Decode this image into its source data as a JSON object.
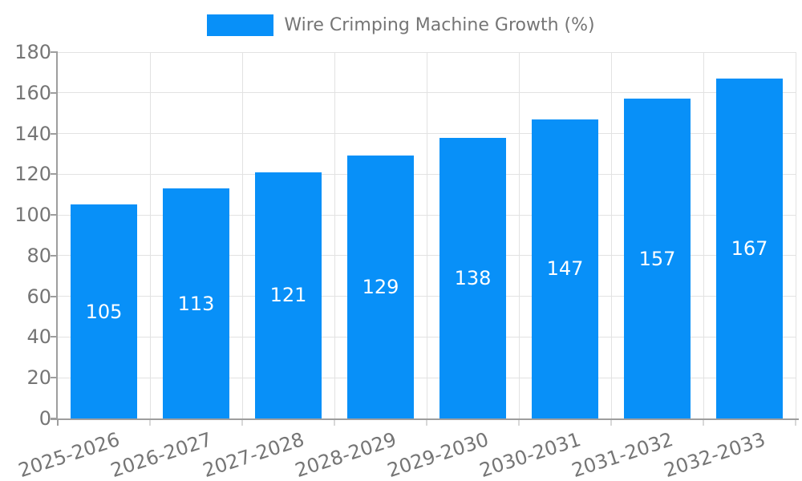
{
  "chart_data": {
    "type": "bar",
    "title": "Wire Crimping Machine Growth (%)",
    "legend_entries": [
      "Wire Crimping Machine Growth (%)"
    ],
    "legend_position": "top-center",
    "categories": [
      "2025-2026",
      "2026-2027",
      "2027-2028",
      "2028-2029",
      "2029-2030",
      "2030-2031",
      "2031-2032",
      "2032-2033"
    ],
    "values": [
      105,
      113,
      121,
      129,
      138,
      147,
      157,
      167
    ],
    "bar_value_labels": [
      "105",
      "113",
      "121",
      "129",
      "138",
      "147",
      "157",
      "167"
    ],
    "xlabel": "",
    "ylabel": "",
    "ylim": [
      0,
      180
    ],
    "ytick_step": 20,
    "ytick_labels": [
      "0",
      "20",
      "40",
      "60",
      "80",
      "100",
      "120",
      "140",
      "160",
      "180"
    ],
    "grid": true,
    "x_label_rotation_deg": -18,
    "colors": {
      "bar": "#0890f8",
      "bar_label": "#ffffff",
      "axis_text": "#757575",
      "grid_line": "#e2e2e2",
      "x_tick": "#d8d8d8",
      "axis_line": "#9e9e9e",
      "background": "#ffffff"
    }
  }
}
